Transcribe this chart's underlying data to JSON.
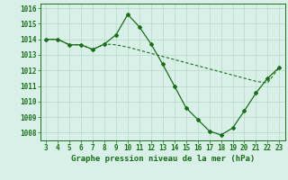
{
  "x": [
    3,
    4,
    5,
    6,
    7,
    8,
    9,
    10,
    11,
    12,
    13,
    14,
    15,
    16,
    17,
    18,
    19,
    20,
    21,
    22,
    23
  ],
  "y_main": [
    1014.0,
    1014.0,
    1013.65,
    1013.65,
    1013.35,
    1013.7,
    1014.3,
    1015.6,
    1014.8,
    1013.7,
    1012.4,
    1011.0,
    1009.6,
    1008.85,
    1008.1,
    1007.85,
    1008.3,
    1009.4,
    1010.55,
    1011.5,
    1012.2
  ],
  "y_trend": [
    1014.0,
    1014.0,
    1013.65,
    1013.65,
    1013.35,
    1013.7,
    1013.65,
    1013.5,
    1013.3,
    1013.1,
    1012.9,
    1012.7,
    1012.5,
    1012.3,
    1012.1,
    1011.9,
    1011.7,
    1011.5,
    1011.3,
    1011.2,
    1012.2
  ],
  "line_color": "#1a6e1a",
  "bg_color": "#d8f0e8",
  "grid_color": "#b8d8c8",
  "xlabel": "Graphe pression niveau de la mer (hPa)",
  "ylim": [
    1007.5,
    1016.3
  ],
  "yticks": [
    1008,
    1009,
    1010,
    1011,
    1012,
    1013,
    1014,
    1015,
    1016
  ],
  "xticks": [
    3,
    4,
    5,
    6,
    7,
    8,
    9,
    10,
    11,
    12,
    13,
    14,
    15,
    16,
    17,
    18,
    19,
    20,
    21,
    22,
    23
  ],
  "tick_fontsize": 5.5,
  "xlabel_fontsize": 6.5
}
